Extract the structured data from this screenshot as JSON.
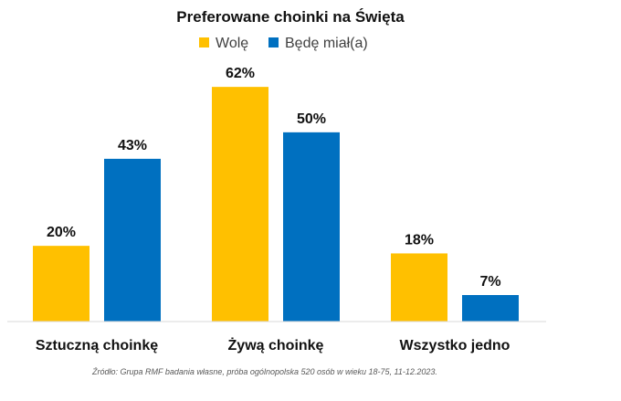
{
  "chart_data": {
    "type": "bar",
    "title": "Preferowane choinki na Święta",
    "categories": [
      "Sztuczną choinkę",
      "Żywą choinkę",
      "Wszystko jedno"
    ],
    "series": [
      {
        "name": "Wolę",
        "color": "#FFC000",
        "values": [
          20,
          62,
          18
        ],
        "labels": [
          "20%",
          "62%",
          "18%"
        ]
      },
      {
        "name": "Będę miał(a)",
        "color": "#0070C0",
        "values": [
          43,
          50,
          7
        ],
        "labels": [
          "43%",
          "50%",
          "7%"
        ]
      }
    ],
    "ylim": [
      0,
      70
    ],
    "grid": false,
    "legend_position": "top-center",
    "xlabel": "",
    "ylabel": ""
  },
  "source_note": "Źródło: Grupa RMF badania własne, próba ogólnopolska 520 osób w wieku 18-75, 11-12.2023."
}
